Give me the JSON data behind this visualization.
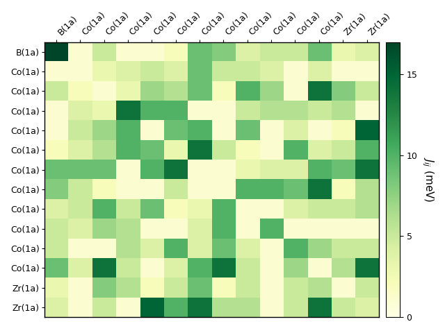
{
  "labels": [
    "B(1a)",
    "Co(1a)",
    "Co(1a)",
    "Co(1a)",
    "Co(1a)",
    "Co(1a)",
    "Co(1a)",
    "Co(1a)",
    "Co(1a)",
    "Co(1a)",
    "Co(1a)",
    "Co(1a)",
    "Zr(1a)",
    "Zr(1a)"
  ],
  "matrix": [
    [
      17,
      1,
      5,
      1,
      1,
      2,
      9,
      8,
      4,
      5,
      5,
      9,
      3,
      4
    ],
    [
      1,
      1,
      3,
      4,
      5,
      4,
      9,
      5,
      5,
      4,
      1,
      4,
      1,
      1
    ],
    [
      5,
      2,
      1,
      3,
      7,
      6,
      9,
      2,
      10,
      7,
      1,
      14,
      8,
      5
    ],
    [
      1,
      4,
      3,
      14,
      10,
      10,
      1,
      1,
      5,
      6,
      6,
      5,
      6,
      1
    ],
    [
      1,
      5,
      7,
      10,
      1,
      9,
      10,
      1,
      9,
      1,
      4,
      1,
      2,
      15
    ],
    [
      2,
      4,
      6,
      10,
      9,
      3,
      14,
      5,
      2,
      1,
      10,
      4,
      5,
      10
    ],
    [
      9,
      9,
      9,
      1,
      10,
      14,
      1,
      1,
      3,
      4,
      4,
      10,
      9,
      14
    ],
    [
      8,
      5,
      2,
      1,
      1,
      5,
      1,
      1,
      10,
      10,
      9,
      14,
      2,
      6
    ],
    [
      4,
      5,
      10,
      5,
      9,
      2,
      3,
      10,
      1,
      1,
      4,
      5,
      5,
      6
    ],
    [
      5,
      4,
      7,
      6,
      1,
      1,
      4,
      10,
      1,
      10,
      1,
      1,
      1,
      1
    ],
    [
      5,
      1,
      1,
      6,
      4,
      10,
      4,
      9,
      4,
      1,
      10,
      7,
      5,
      5
    ],
    [
      9,
      4,
      14,
      5,
      1,
      4,
      10,
      14,
      5,
      1,
      7,
      1,
      6,
      14
    ],
    [
      3,
      1,
      8,
      6,
      2,
      5,
      9,
      2,
      5,
      1,
      5,
      6,
      1,
      5
    ],
    [
      4,
      1,
      5,
      1,
      15,
      10,
      14,
      6,
      6,
      1,
      5,
      14,
      5,
      4
    ]
  ],
  "vmin": 0,
  "vmax": 17,
  "colormap": "YlGn",
  "cbar_label": "$J_{ij}$ (meV)",
  "cbar_ticks": [
    0,
    5,
    10,
    15
  ],
  "figsize": [
    6.4,
    4.8
  ],
  "dpi": 100
}
